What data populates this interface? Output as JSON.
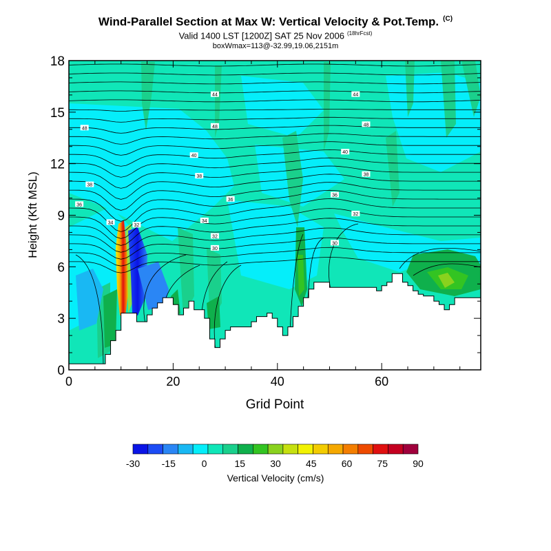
{
  "header": {
    "title": "Wind-Parallel Section at Max W: Vertical Velocity & Pot.Temp.",
    "title_tag": "(C)",
    "subtitle": "Valid 1400 LST [1200Z] SAT 25 Nov 2006",
    "subtitle_note": "(18hrFcst)",
    "subtitle2": "boxWmax=113@-32.99,19.06,2151m"
  },
  "chart_data": {
    "type": "heatmap",
    "xlabel": "Grid Point",
    "ylabel": "Height (Kft MSL)",
    "xlim": [
      0,
      79
    ],
    "ylim": [
      0,
      18
    ],
    "xticks": [
      0,
      20,
      40,
      60
    ],
    "yticks": [
      0,
      3,
      6,
      9,
      12,
      15,
      18
    ],
    "colorbar": {
      "label": "Vertical Velocity (cm/s)",
      "ticks": [
        -30,
        -15,
        0,
        15,
        30,
        45,
        60,
        75,
        90
      ],
      "colors": [
        "#0a14e6",
        "#1c4cf5",
        "#2a86f5",
        "#19b8f3",
        "#05eefa",
        "#10e6b8",
        "#1ad08c",
        "#0fb04c",
        "#33c422",
        "#8ad21e",
        "#c6e010",
        "#f2f202",
        "#f3cc00",
        "#f5a800",
        "#f47e00",
        "#ee4a00",
        "#e01010",
        "#c40020",
        "#a0003c"
      ]
    },
    "terrain_kft": [
      [
        0,
        0.35
      ],
      [
        7,
        0.35
      ],
      [
        7,
        0.9
      ],
      [
        8,
        0.9
      ],
      [
        8,
        1.7
      ],
      [
        9,
        1.7
      ],
      [
        9,
        2.3
      ],
      [
        10,
        2.3
      ],
      [
        10,
        3.3
      ],
      [
        13,
        3.3
      ],
      [
        13,
        2.8
      ],
      [
        15,
        2.8
      ],
      [
        15,
        3.2
      ],
      [
        16,
        3.2
      ],
      [
        16,
        3.6
      ],
      [
        17,
        3.6
      ],
      [
        17,
        3.9
      ],
      [
        18,
        3.9
      ],
      [
        18,
        4.2
      ],
      [
        20,
        4.2
      ],
      [
        20,
        3.8
      ],
      [
        21,
        3.8
      ],
      [
        21,
        3.2
      ],
      [
        22,
        3.2
      ],
      [
        22,
        3.6
      ],
      [
        23,
        3.6
      ],
      [
        23,
        4.0
      ],
      [
        24,
        4.0
      ],
      [
        24,
        3.5
      ],
      [
        26,
        3.5
      ],
      [
        26,
        3.0
      ],
      [
        27,
        3.0
      ],
      [
        27,
        1.8
      ],
      [
        28,
        1.8
      ],
      [
        28,
        1.3
      ],
      [
        29,
        1.3
      ],
      [
        29,
        1.8
      ],
      [
        30,
        1.8
      ],
      [
        30,
        2.3
      ],
      [
        31,
        2.3
      ],
      [
        31,
        2.5
      ],
      [
        35,
        2.5
      ],
      [
        35,
        2.8
      ],
      [
        36,
        2.8
      ],
      [
        36,
        3.1
      ],
      [
        38,
        3.1
      ],
      [
        38,
        3.3
      ],
      [
        39,
        3.3
      ],
      [
        39,
        3.0
      ],
      [
        40,
        3.0
      ],
      [
        40,
        2.5
      ],
      [
        41,
        2.5
      ],
      [
        41,
        2.0
      ],
      [
        42,
        2.0
      ],
      [
        42,
        2.5
      ],
      [
        43,
        2.5
      ],
      [
        43,
        3.1
      ],
      [
        44,
        3.1
      ],
      [
        44,
        3.7
      ],
      [
        45,
        3.7
      ],
      [
        45,
        4.2
      ],
      [
        46,
        4.2
      ],
      [
        46,
        4.7
      ],
      [
        47,
        4.7
      ],
      [
        47,
        5.1
      ],
      [
        50,
        5.1
      ],
      [
        50,
        4.8
      ],
      [
        59,
        4.8
      ],
      [
        59,
        4.6
      ],
      [
        60,
        4.6
      ],
      [
        60,
        4.9
      ],
      [
        61,
        4.9
      ],
      [
        61,
        5.1
      ],
      [
        62,
        5.1
      ],
      [
        62,
        5.6
      ],
      [
        64,
        5.6
      ],
      [
        64,
        5.1
      ],
      [
        65,
        5.1
      ],
      [
        65,
        4.9
      ],
      [
        66,
        4.9
      ],
      [
        66,
        4.6
      ],
      [
        67,
        4.6
      ],
      [
        67,
        4.4
      ],
      [
        68,
        4.4
      ],
      [
        68,
        4.3
      ],
      [
        70,
        4.3
      ],
      [
        70,
        4.0
      ],
      [
        71,
        4.0
      ],
      [
        71,
        3.8
      ],
      [
        72,
        3.8
      ],
      [
        72,
        3.5
      ],
      [
        73,
        3.5
      ],
      [
        73,
        3.8
      ],
      [
        74,
        3.8
      ],
      [
        74,
        4.2
      ],
      [
        79,
        4.2
      ]
    ],
    "isentrope_labels": [
      {
        "text": "44",
        "x": 28,
        "y": 16.05
      },
      {
        "text": "44",
        "x": 55,
        "y": 16.05
      },
      {
        "text": "48",
        "x": 3,
        "y": 14.1
      },
      {
        "text": "48",
        "x": 28,
        "y": 14.2
      },
      {
        "text": "48",
        "x": 57,
        "y": 14.3
      },
      {
        "text": "40",
        "x": 24,
        "y": 12.5
      },
      {
        "text": "40",
        "x": 53,
        "y": 12.7
      },
      {
        "text": "38",
        "x": 4,
        "y": 10.8
      },
      {
        "text": "38",
        "x": 25,
        "y": 11.3
      },
      {
        "text": "38",
        "x": 57,
        "y": 11.4
      },
      {
        "text": "36",
        "x": 2,
        "y": 9.65
      },
      {
        "text": "36",
        "x": 31,
        "y": 9.95
      },
      {
        "text": "36",
        "x": 51,
        "y": 10.2
      },
      {
        "text": "34",
        "x": 8,
        "y": 8.6
      },
      {
        "text": "34",
        "x": 26,
        "y": 8.7
      },
      {
        "text": "32",
        "x": 55,
        "y": 9.1
      },
      {
        "text": "32",
        "x": 13,
        "y": 8.45
      },
      {
        "text": "32",
        "x": 28,
        "y": 7.8
      },
      {
        "text": "30",
        "x": 28,
        "y": 7.1
      },
      {
        "text": "30",
        "x": 51,
        "y": 7.4
      }
    ]
  }
}
